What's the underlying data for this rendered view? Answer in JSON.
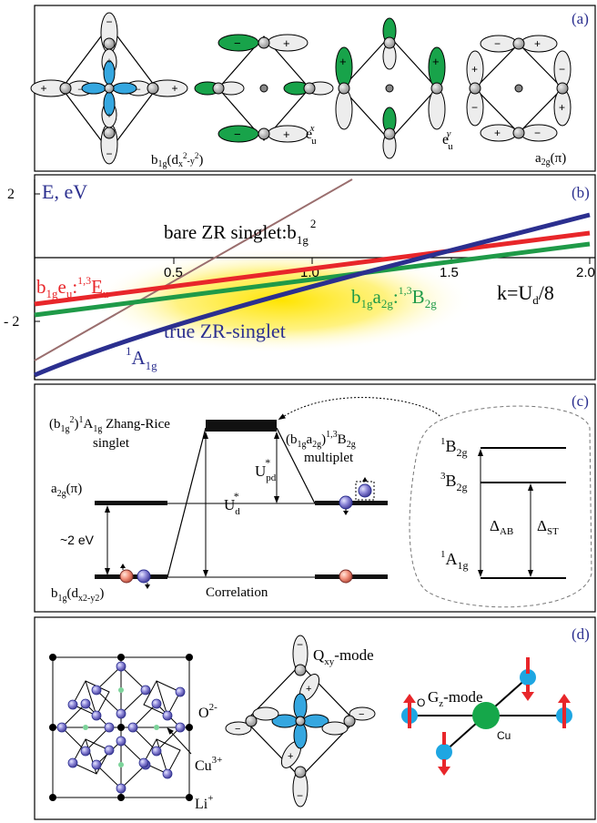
{
  "panels": {
    "a": {
      "tag": "(a)",
      "orbitals": [
        {
          "base": "b",
          "sub": "1g",
          "paren": "(d",
          "paren_sub": "x",
          "sup": "2",
          "mid": "-y",
          "sup2": "2",
          "close": ")"
        },
        {
          "base": "e",
          "sub": "u",
          "sup": "x"
        },
        {
          "base": "e",
          "sub": "u",
          "sup": "y"
        },
        {
          "base": "a",
          "sub": "2g",
          "paren": "(π)"
        }
      ]
    },
    "b": {
      "tag": "(b)",
      "y_axis_label": "E, eV",
      "y_ticks": [
        "2",
        "- 2"
      ],
      "x_ticks": [
        "0.5",
        "1.0",
        "1.5",
        "2.0"
      ],
      "x_axis_label": {
        "pre": "k=U",
        "sub": "d",
        "mid": "/8"
      },
      "labels": {
        "bare": {
          "text": "bare ZR singlet:b",
          "sub": "1g",
          "sup": "2"
        },
        "true_zr": "true ZR-singlet",
        "a1g": {
          "sup": "1",
          "base": "A",
          "sub": "1g"
        },
        "red": {
          "b": "b",
          "bsub": "1g",
          "e": "e",
          "esub": "u",
          "colon": ":",
          "sup": "1,3",
          "E": "E",
          "Esub": "u"
        },
        "green": {
          "b": "b",
          "bsub": "1g",
          "a": "a",
          "asub": "2g",
          "colon": ":",
          "sup": "1,3",
          "B": "B",
          "Bsub": "2g"
        }
      },
      "colors": {
        "red": "#e8262a",
        "green": "#1f9a48",
        "blue": "#2b2f8f",
        "brown": "#9a6e6e",
        "glow": "#ffe400"
      }
    },
    "c": {
      "tag": "(c)",
      "zr_label": {
        "l1": "(b",
        "l1sub": "1g",
        "l1sup": "2",
        "l1b": ")",
        "l1sup2": "1",
        "l1c": "A",
        "l1csub": "1g",
        "l1d": " Zhang-Rice",
        "l2": "singlet"
      },
      "multiplet_label": {
        "pre": "(b",
        "sub1": "1g",
        "mid": "a",
        "sub2": "2g",
        "close": ")",
        "sup": "1,3",
        "B": "B",
        "Bsub": "2g",
        "l2": "multiplet"
      },
      "a2g": "a",
      "a2g_sub": "2g",
      "a2g_paren": "(π)",
      "two_ev": "~2 eV",
      "b1g": "b",
      "b1g_sub": "1g",
      "b1g_paren": "(d",
      "b1g_paren_sub": "x2-y2",
      "b1g_close": ")",
      "ud": "U",
      "ud_sub": "d",
      "ud_sup": "*",
      "upd": "U",
      "upd_sub": "pd",
      "upd_sup": "*",
      "correlation": "Correlation",
      "inset": {
        "b2g1": {
          "sup": "1",
          "base": "B",
          "sub": "2g"
        },
        "b2g3": {
          "sup": "3",
          "base": "B",
          "sub": "2g"
        },
        "a1g": {
          "sup": "1",
          "base": "A",
          "sub": "1g"
        },
        "dab": {
          "base": "Δ",
          "sub": "AB"
        },
        "dst": {
          "base": "Δ",
          "sub": "ST"
        }
      }
    },
    "d": {
      "tag": "(d)",
      "o2": {
        "base": "O",
        "sup": "2-"
      },
      "cu3": {
        "base": "Cu",
        "sup": "3+"
      },
      "li": {
        "base": "Li",
        "sup": "+"
      },
      "qxy": {
        "base": "Q",
        "sub": "xy",
        "rest": "-mode"
      },
      "gz": {
        "base": "G",
        "sub": "z",
        "rest": "-mode"
      },
      "o_label": "O",
      "cu_label": "Cu"
    }
  }
}
